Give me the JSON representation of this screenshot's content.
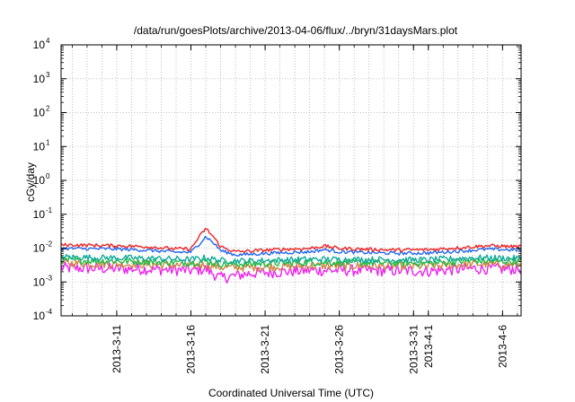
{
  "chart_data": {
    "type": "line",
    "title": "/data/run/goesPlots/archive/2013-04-06/flux/../bryn/31daysMars.plot",
    "xlabel": "Coordinated Universal Time (UTC)",
    "ylabel": "cGy/day",
    "yscale": "log",
    "ylim": [
      0.0001,
      10000
    ],
    "xlim": [
      "2013-03-07T06:00",
      "2013-04-07T06:00"
    ],
    "grid": true,
    "y_ticks": [
      {
        "value": 0.0001,
        "base": "10",
        "exp": "-4"
      },
      {
        "value": 0.001,
        "base": "10",
        "exp": "-3"
      },
      {
        "value": 0.01,
        "base": "10",
        "exp": "-2"
      },
      {
        "value": 0.1,
        "base": "10",
        "exp": "-1"
      },
      {
        "value": 1,
        "base": "10",
        "exp": "0"
      },
      {
        "value": 10,
        "base": "10",
        "exp": "1"
      },
      {
        "value": 100,
        "base": "10",
        "exp": "2"
      },
      {
        "value": 1000,
        "base": "10",
        "exp": "3"
      },
      {
        "value": 10000,
        "base": "10",
        "exp": "4"
      }
    ],
    "x_ticks": [
      {
        "date": "2013-03-11",
        "label": "2013-3-11"
      },
      {
        "date": "2013-03-16",
        "label": "2013-3-16"
      },
      {
        "date": "2013-03-21",
        "label": "2013-3-21"
      },
      {
        "date": "2013-03-26",
        "label": "2013-3-26"
      },
      {
        "date": "2013-03-31",
        "label": "2013-3-31"
      },
      {
        "date": "2013-04-01",
        "label": "2013-4-1"
      },
      {
        "date": "2013-04-06",
        "label": "2013-4-6"
      }
    ],
    "series": [
      {
        "color": "#ee2222",
        "x": [
          "2013-03-07",
          "2013-03-09",
          "2013-03-11",
          "2013-03-13",
          "2013-03-15",
          "2013-03-16",
          "2013-03-16T12:00",
          "2013-03-17",
          "2013-03-17T12:00",
          "2013-03-18",
          "2013-03-19",
          "2013-03-20",
          "2013-03-22",
          "2013-03-24",
          "2013-03-25",
          "2013-03-26",
          "2013-03-28",
          "2013-03-30",
          "2013-04-01",
          "2013-04-03",
          "2013-04-05",
          "2013-04-07"
        ],
        "y": [
          0.0125,
          0.0122,
          0.0118,
          0.011,
          0.0095,
          0.0095,
          0.02,
          0.038,
          0.022,
          0.011,
          0.0078,
          0.0082,
          0.0092,
          0.0098,
          0.0115,
          0.0098,
          0.0092,
          0.0088,
          0.009,
          0.0102,
          0.0118,
          0.011
        ]
      },
      {
        "color": "#2266ee",
        "x": [
          "2013-03-07",
          "2013-03-09",
          "2013-03-11",
          "2013-03-13",
          "2013-03-15",
          "2013-03-16",
          "2013-03-16T12:00",
          "2013-03-17",
          "2013-03-17T12:00",
          "2013-03-18",
          "2013-03-19",
          "2013-03-20",
          "2013-03-22",
          "2013-03-24",
          "2013-03-25",
          "2013-03-26",
          "2013-03-28",
          "2013-03-30",
          "2013-04-01",
          "2013-04-03",
          "2013-04-05",
          "2013-04-07"
        ],
        "y": [
          0.0098,
          0.0096,
          0.0094,
          0.0087,
          0.0076,
          0.0076,
          0.0125,
          0.022,
          0.0145,
          0.0085,
          0.0063,
          0.0066,
          0.0073,
          0.0078,
          0.009,
          0.0078,
          0.0073,
          0.007,
          0.0072,
          0.0081,
          0.0093,
          0.0088
        ]
      },
      {
        "color": "#11aa99",
        "x": [
          "2013-03-07",
          "2013-03-10",
          "2013-03-13",
          "2013-03-16",
          "2013-03-17",
          "2013-03-18",
          "2013-03-20",
          "2013-03-24",
          "2013-03-28",
          "2013-04-01",
          "2013-04-04",
          "2013-04-07"
        ],
        "y": [
          0.0055,
          0.0052,
          0.005,
          0.0046,
          0.0052,
          0.0043,
          0.0042,
          0.0047,
          0.0046,
          0.0045,
          0.0052,
          0.005
        ]
      },
      {
        "color": "#22bb44",
        "x": [
          "2013-03-07",
          "2013-03-10",
          "2013-03-13",
          "2013-03-16",
          "2013-03-17",
          "2013-03-18",
          "2013-03-20",
          "2013-03-24",
          "2013-03-28",
          "2013-04-01",
          "2013-04-04",
          "2013-04-07"
        ],
        "y": [
          0.0044,
          0.0042,
          0.004,
          0.0037,
          0.0041,
          0.0034,
          0.0034,
          0.0038,
          0.0037,
          0.0036,
          0.0042,
          0.004
        ]
      },
      {
        "color": "#cc8844",
        "x": [
          "2013-03-07",
          "2013-03-10",
          "2013-03-13",
          "2013-03-16",
          "2013-03-17",
          "2013-03-18",
          "2013-03-20",
          "2013-03-24",
          "2013-03-28",
          "2013-04-01",
          "2013-04-04",
          "2013-04-07"
        ],
        "y": [
          0.0036,
          0.0034,
          0.0033,
          0.003,
          0.0033,
          0.0027,
          0.0027,
          0.003,
          0.003,
          0.0029,
          0.0034,
          0.0032
        ]
      },
      {
        "color": "#ee22ee",
        "x": [
          "2013-03-07",
          "2013-03-10",
          "2013-03-13",
          "2013-03-16",
          "2013-03-17",
          "2013-03-18",
          "2013-03-20",
          "2013-03-24",
          "2013-03-28",
          "2013-04-01",
          "2013-04-04",
          "2013-04-07"
        ],
        "y": [
          0.0026,
          0.0025,
          0.0024,
          0.0022,
          0.0024,
          0.0013,
          0.0018,
          0.0022,
          0.0022,
          0.0021,
          0.0025,
          0.0024
        ]
      }
    ]
  }
}
